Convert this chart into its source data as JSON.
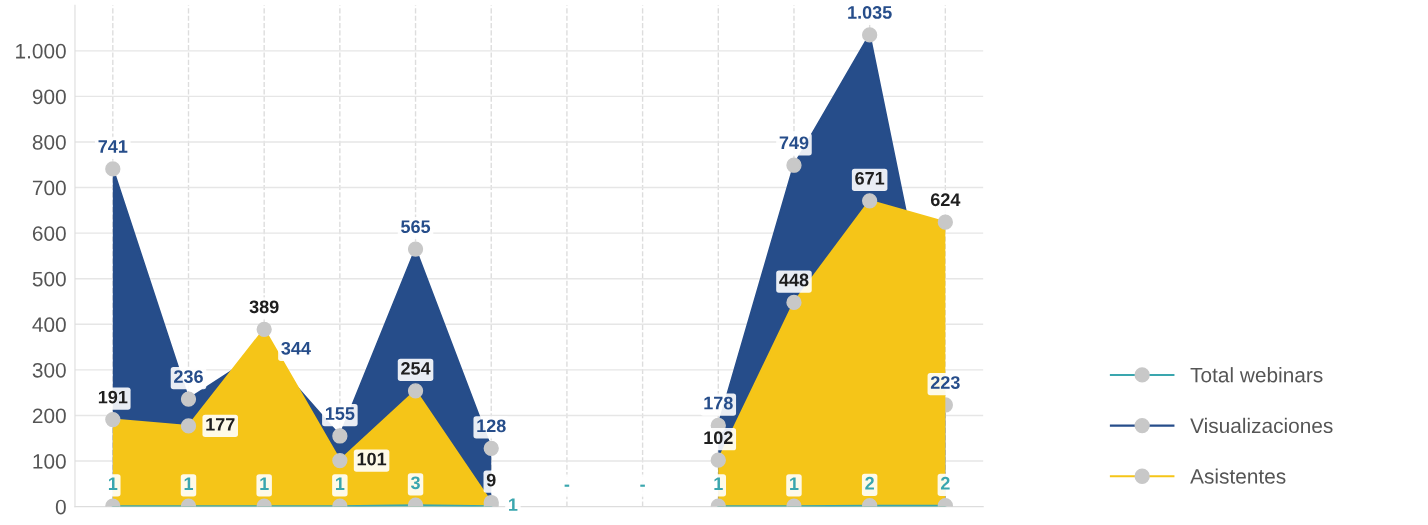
{
  "chart_data": {
    "type": "area",
    "categories": [
      null,
      null,
      null,
      null,
      null,
      null,
      null,
      null,
      null,
      null,
      null,
      null
    ],
    "ylim": [
      0,
      1100
    ],
    "yticks": [
      0,
      100,
      200,
      300,
      400,
      500,
      600,
      700,
      800,
      900,
      {
        "value": 1000,
        "label": "1.000"
      }
    ],
    "grid": true,
    "legend": "bottom right",
    "marker": "circle",
    "series": [
      {
        "name": "Total webinars",
        "color": "#3aa6ae",
        "values": [
          1,
          1,
          1,
          1,
          3,
          1,
          null,
          null,
          1,
          1,
          2,
          2
        ],
        "value_labels": [
          "1",
          "1",
          "1",
          "1",
          "3",
          "1",
          "-",
          "-",
          "1",
          "1",
          "2",
          "2"
        ]
      },
      {
        "name": "Visualizaciones",
        "color": "#264d8a",
        "values": [
          741,
          236,
          344,
          155,
          565,
          128,
          null,
          null,
          178,
          749,
          1035,
          223
        ],
        "value_labels": [
          "741",
          "236",
          "344",
          "155",
          "565",
          "128",
          null,
          null,
          "178",
          "749",
          "1.035",
          "223"
        ]
      },
      {
        "name": "Asistentes",
        "color": "#f5c518",
        "values": [
          191,
          177,
          389,
          101,
          254,
          9,
          null,
          null,
          102,
          448,
          671,
          624
        ],
        "value_labels": [
          "191",
          "177",
          "389",
          "101",
          "254",
          "9",
          null,
          null,
          "102",
          "448",
          "671",
          "624"
        ]
      }
    ]
  }
}
